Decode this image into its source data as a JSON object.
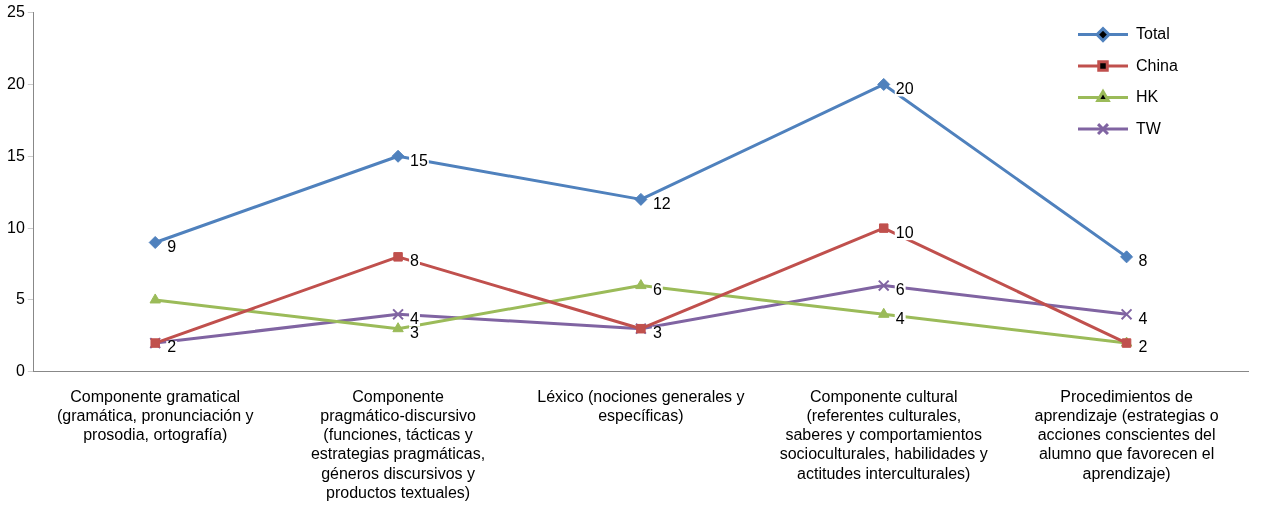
{
  "chart_data": {
    "type": "line",
    "categories": [
      "Componente gramatical (gramática, pronunciación y prosodia, ortografía)",
      "Componente pragmático-discursivo (funciones, tácticas y estrategias pragmáticas, géneros discursivos y productos textuales)",
      "Léxico (nociones generales y específicas)",
      "Componente cultural (referentes culturales, saberes y comportamientos socioculturales, habilidades y actitudes interculturales)",
      "Procedimientos de aprendizaje (estrategias o acciones conscientes del alumno que favorecen el aprendizaje)"
    ],
    "series": [
      {
        "name": "Total",
        "color": "#4f81bd",
        "marker": "diamond",
        "values": [
          9,
          15,
          12,
          20,
          8
        ],
        "value_labels": [
          "9",
          "15",
          "12",
          "20",
          "8"
        ]
      },
      {
        "name": "China",
        "color": "#c0504d",
        "marker": "square",
        "values": [
          2,
          8,
          3,
          10,
          2
        ],
        "value_labels": [
          "2",
          "8",
          "3",
          "10",
          "2"
        ]
      },
      {
        "name": "HK",
        "color": "#9bbb59",
        "marker": "triangle",
        "values": [
          5,
          3,
          6,
          4,
          2
        ],
        "value_labels": [
          null,
          "3",
          "6",
          "4",
          null
        ]
      },
      {
        "name": "TW",
        "color": "#8064a2",
        "marker": "cross",
        "values": [
          2,
          4,
          3,
          6,
          4
        ],
        "value_labels": [
          null,
          "4",
          null,
          "6",
          "4"
        ]
      }
    ],
    "ylim": [
      0,
      25
    ],
    "yticks": [
      0,
      5,
      10,
      15,
      20,
      25
    ],
    "grid": false,
    "legend": "top right"
  }
}
